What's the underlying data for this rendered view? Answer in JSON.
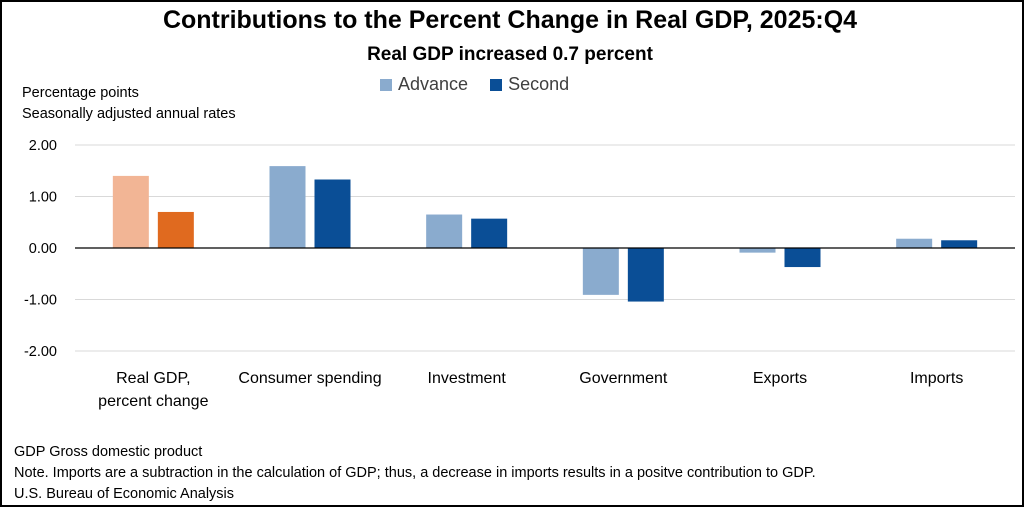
{
  "title": "Contributions to the Percent Change in Real GDP, 2025:Q4",
  "subtitle": "Real GDP increased 0.7 percent",
  "units": [
    "Percentage points",
    "Seasonally adjusted annual rates"
  ],
  "colors": {
    "advance": "#8AABCE",
    "second": "#0A4E96",
    "advance_gdp": "#F2B595",
    "second_gdp": "#E06A1F",
    "grid": "#D9D9D9",
    "zero_line": "#000000"
  },
  "footnotes": [
    "GDP Gross domestic product",
    "Note. Imports are a subtraction in the calculation of GDP; thus, a decrease in imports results in a positve contribution to GDP.",
    "U.S. Bureau of Economic Analysis"
  ],
  "chart_data": {
    "type": "bar",
    "title": "Contributions to the Percent Change in Real GDP, 2025:Q4",
    "subtitle": "Real GDP increased 0.7 percent",
    "ylabel": "Percentage points",
    "categories": [
      [
        "Real GDP,",
        "percent change"
      ],
      [
        "Consumer spending"
      ],
      [
        "Investment"
      ],
      [
        "Government"
      ],
      [
        "Exports"
      ],
      [
        "Imports"
      ]
    ],
    "series": [
      {
        "name": "Advance",
        "values": [
          1.4,
          1.59,
          0.65,
          -0.91,
          -0.09,
          0.18
        ]
      },
      {
        "name": "Second",
        "values": [
          0.7,
          1.33,
          0.57,
          -1.04,
          -0.37,
          0.15
        ]
      }
    ],
    "ylim": [
      -2.0,
      2.0
    ],
    "yticks": [
      "2.00",
      "1.00",
      "0.00",
      "-1.00",
      "-2.00"
    ],
    "ytick_values": [
      2,
      1,
      0,
      -1,
      -2
    ],
    "grid": true,
    "legend": "top-center"
  }
}
